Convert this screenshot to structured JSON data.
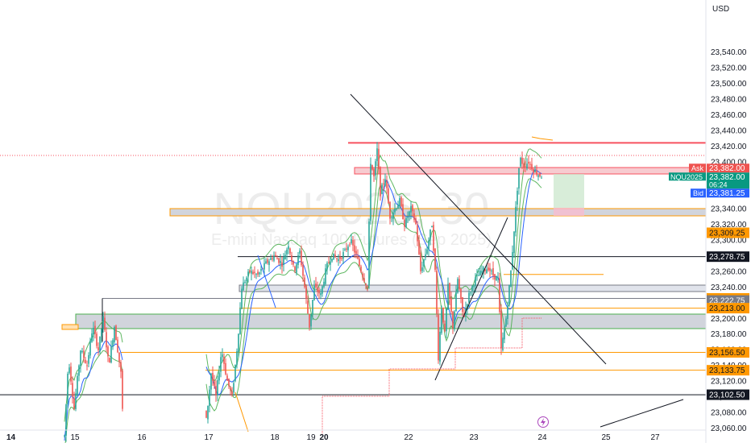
{
  "watermark": {
    "symbol": "NQU2025, 30",
    "description": "E-mini Nasdaq 100 Futures (Sep 2025)"
  },
  "currency": "USD",
  "colors": {
    "up": "#26a69a",
    "down": "#ef5350",
    "ask": "#ef5350",
    "bid": "#2962ff",
    "current": "#089981",
    "level": "#ff9800",
    "line": "#131722",
    "zone": "#b2b5be",
    "resistance": "#f7525f",
    "ma_blue": "#2962ff",
    "ma_green": "#4caf50"
  },
  "chart_data": {
    "type": "candlestick",
    "symbol": "NQU2025",
    "timeframe": "30",
    "ylim": [
      23050,
      23555
    ],
    "x_ticks": [
      "14",
      "15",
      "16",
      "17",
      "18",
      "19",
      "20",
      "22",
      "23",
      "24",
      "25",
      "27"
    ],
    "y_ticks": [
      "23,060.00",
      "23,080.00",
      "23,100.00",
      "23,120.00",
      "23,140.00",
      "23,160.00",
      "23,180.00",
      "23,200.00",
      "23,220.00",
      "23,240.00",
      "23,260.00",
      "23,280.00",
      "23,300.00",
      "23,320.00",
      "23,340.00",
      "23,360.00",
      "23,380.00",
      "23,400.00",
      "23,420.00",
      "23,440.00",
      "23,460.00",
      "23,480.00",
      "23,500.00",
      "23,520.00",
      "23,540.00"
    ],
    "waypoints": [
      [
        80,
        23050
      ],
      [
        85,
        23150
      ],
      [
        92,
        23085
      ],
      [
        100,
        23160
      ],
      [
        108,
        23140
      ],
      [
        115,
        23190
      ],
      [
        122,
        23160
      ],
      [
        128,
        23200
      ],
      [
        135,
        23140
      ],
      [
        142,
        23190
      ],
      [
        150,
        23130
      ],
      [
        153,
        23060
      ],
      [
        255,
        23060
      ],
      [
        262,
        23130
      ],
      [
        268,
        23100
      ],
      [
        275,
        23160
      ],
      [
        282,
        23120
      ],
      [
        288,
        23100
      ],
      [
        295,
        23170
      ],
      [
        300,
        23240
      ],
      [
        310,
        23260
      ],
      [
        320,
        23255
      ],
      [
        330,
        23270
      ],
      [
        340,
        23280
      ],
      [
        350,
        23270
      ],
      [
        358,
        23295
      ],
      [
        365,
        23260
      ],
      [
        372,
        23285
      ],
      [
        378,
        23240
      ],
      [
        384,
        23190
      ],
      [
        390,
        23240
      ],
      [
        398,
        23230
      ],
      [
        405,
        23265
      ],
      [
        412,
        23280
      ],
      [
        420,
        23275
      ],
      [
        428,
        23285
      ],
      [
        435,
        23300
      ],
      [
        442,
        23280
      ],
      [
        450,
        23255
      ],
      [
        456,
        23240
      ],
      [
        460,
        23400
      ],
      [
        464,
        23380
      ],
      [
        468,
        23415
      ],
      [
        472,
        23360
      ],
      [
        478,
        23380
      ],
      [
        484,
        23330
      ],
      [
        490,
        23340
      ],
      [
        496,
        23350
      ],
      [
        502,
        23320
      ],
      [
        510,
        23340
      ],
      [
        516,
        23320
      ],
      [
        522,
        23260
      ],
      [
        530,
        23290
      ],
      [
        536,
        23320
      ],
      [
        540,
        23260
      ],
      [
        544,
        23150
      ],
      [
        548,
        23215
      ],
      [
        552,
        23180
      ],
      [
        556,
        23240
      ],
      [
        562,
        23190
      ],
      [
        568,
        23250
      ],
      [
        575,
        23200
      ],
      [
        582,
        23230
      ],
      [
        590,
        23250
      ],
      [
        598,
        23260
      ],
      [
        606,
        23265
      ],
      [
        612,
        23255
      ],
      [
        618,
        23250
      ],
      [
        622,
        23160
      ],
      [
        628,
        23200
      ],
      [
        634,
        23260
      ],
      [
        640,
        23340
      ],
      [
        645,
        23405
      ],
      [
        650,
        23395
      ],
      [
        656,
        23400
      ],
      [
        662,
        23390
      ],
      [
        668,
        23384
      ],
      [
        672,
        23382
      ]
    ],
    "resistance_level": 23424,
    "current_price": "23,382.00",
    "countdown": "06:24",
    "ask": "23,382.00",
    "bid": "23,381.25",
    "price_labels": [
      {
        "text": "23,309.25",
        "value": 23309.25,
        "color": "#ff9800"
      },
      {
        "text": "23,278.75",
        "value": 23278.75,
        "color": "#131722"
      },
      {
        "text": "23,225.50",
        "value": 23225.5,
        "color": "#ff9800"
      },
      {
        "text": "23,222.75",
        "value": 23222.75,
        "color": "#787b86"
      },
      {
        "text": "23,213.00",
        "value": 23213,
        "color": "#ff9800"
      },
      {
        "text": "23,156.50",
        "value": 23156.5,
        "color": "#ff9800"
      },
      {
        "text": "23,133.75",
        "value": 23133.75,
        "color": "#ff9800"
      },
      {
        "text": "23,102.50",
        "value": 23102.5,
        "color": "#131722"
      }
    ]
  },
  "labels": {
    "ask_tag": "Ask",
    "bid_tag": "Bid",
    "symbol_tag": "NQU2025"
  }
}
